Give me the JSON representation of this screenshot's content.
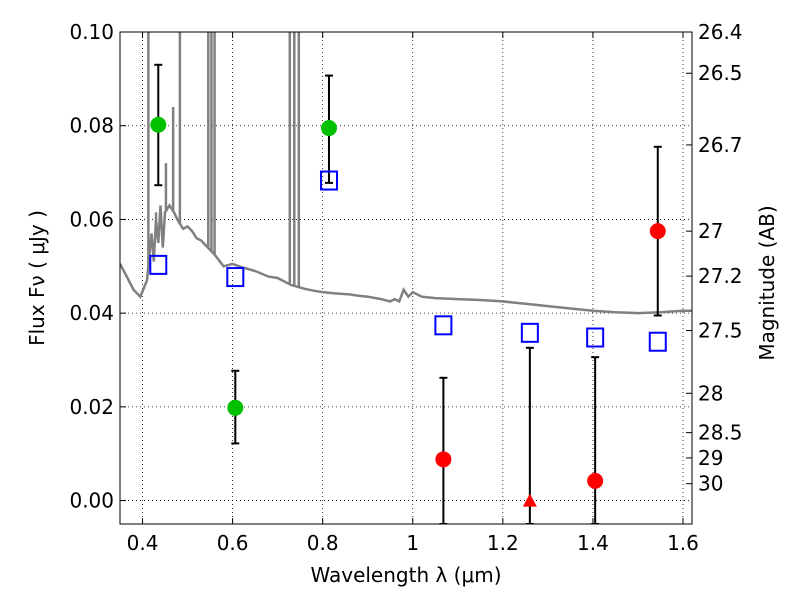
{
  "chart_data": {
    "type": "scatter",
    "xlabel": "Wavelength  λ (μm)",
    "ylabel": "Flux  Fν  ( μJy )",
    "ylabel_right": "Magnitude (AB)",
    "xlim": [
      0.35,
      1.62
    ],
    "ylim": [
      -0.005,
      0.1
    ],
    "x_ticks": [
      0.4,
      0.6,
      0.8,
      1.0,
      1.2,
      1.4,
      1.6
    ],
    "x_tick_labels": [
      "0.4",
      "0.6",
      "0.8",
      "1",
      "1.2",
      "1.4",
      "1.6"
    ],
    "y_ticks": [
      0.0,
      0.02,
      0.04,
      0.06,
      0.08,
      0.1
    ],
    "y_tick_labels": [
      "0.00",
      "0.02",
      "0.04",
      "0.06",
      "0.08",
      "0.10"
    ],
    "mag_ticks": [
      {
        "label": "26.4",
        "flux": 0.1
      },
      {
        "label": "26.5",
        "flux": 0.0912
      },
      {
        "label": "26.7",
        "flux": 0.0759
      },
      {
        "label": "27",
        "flux": 0.0575
      },
      {
        "label": "27.2",
        "flux": 0.0479
      },
      {
        "label": "27.5",
        "flux": 0.0363
      },
      {
        "label": "28",
        "flux": 0.0229
      },
      {
        "label": "28.5",
        "flux": 0.0145
      },
      {
        "label": "29",
        "flux": 0.0091
      },
      {
        "label": "30",
        "flux": 0.0036
      }
    ],
    "grid": true,
    "series": [
      {
        "name": "detections (green)",
        "color": "#00c000",
        "marker": "circle",
        "points": [
          {
            "x": 0.435,
            "y": 0.0802,
            "err_low": 0.0673,
            "err_high": 0.093
          },
          {
            "x": 0.606,
            "y": 0.0198,
            "err_low": 0.0122,
            "err_high": 0.0277
          },
          {
            "x": 0.814,
            "y": 0.0795,
            "err_low": 0.0678,
            "err_high": 0.0907
          }
        ]
      },
      {
        "name": "measurements (red)",
        "color": "#ff0000",
        "marker": "circle",
        "points": [
          {
            "x": 1.068,
            "y": 0.0088,
            "err_low": -0.005,
            "err_high": 0.0262
          },
          {
            "x": 1.405,
            "y": 0.0042,
            "err_low": -0.005,
            "err_high": 0.0306
          },
          {
            "x": 1.544,
            "y": 0.0575,
            "err_low": 0.0395,
            "err_high": 0.0755
          }
        ]
      },
      {
        "name": "upper limit (red triangle)",
        "color": "#ff0000",
        "marker": "triangle",
        "points": [
          {
            "x": 1.26,
            "y": 0.0,
            "err_low": -0.005,
            "err_high": 0.0326
          }
        ]
      },
      {
        "name": "model photometry",
        "color": "#0000ff",
        "marker": "open-square",
        "points": [
          {
            "x": 0.435,
            "y": 0.0503
          },
          {
            "x": 0.606,
            "y": 0.0477
          },
          {
            "x": 0.814,
            "y": 0.0683
          },
          {
            "x": 1.068,
            "y": 0.0374
          },
          {
            "x": 1.26,
            "y": 0.0358
          },
          {
            "x": 1.405,
            "y": 0.0348
          },
          {
            "x": 1.544,
            "y": 0.0339
          }
        ]
      },
      {
        "name": "SED template",
        "color": "#808080",
        "line": [
          [
            0.35,
            0.0505
          ],
          [
            0.365,
            0.0478
          ],
          [
            0.38,
            0.045
          ],
          [
            0.395,
            0.0435
          ],
          [
            0.41,
            0.047
          ],
          [
            0.42,
            0.057
          ],
          [
            0.425,
            0.051
          ],
          [
            0.43,
            0.06
          ],
          [
            0.435,
            0.055
          ],
          [
            0.44,
            0.063
          ],
          [
            0.445,
            0.054
          ],
          [
            0.45,
            0.0615
          ],
          [
            0.46,
            0.063
          ],
          [
            0.47,
            0.0615
          ],
          [
            0.48,
            0.0595
          ],
          [
            0.49,
            0.058
          ],
          [
            0.5,
            0.0585
          ],
          [
            0.51,
            0.0575
          ],
          [
            0.52,
            0.056
          ],
          [
            0.53,
            0.0555
          ],
          [
            0.54,
            0.0545
          ],
          [
            0.55,
            0.0535
          ],
          [
            0.56,
            0.0525
          ],
          [
            0.58,
            0.05
          ],
          [
            0.6,
            0.0505
          ],
          [
            0.62,
            0.0498
          ],
          [
            0.65,
            0.049
          ],
          [
            0.68,
            0.0478
          ],
          [
            0.7,
            0.0475
          ],
          [
            0.73,
            0.046
          ],
          [
            0.76,
            0.0452
          ],
          [
            0.78,
            0.0448
          ],
          [
            0.8,
            0.0445
          ],
          [
            0.83,
            0.0442
          ],
          [
            0.86,
            0.044
          ],
          [
            0.88,
            0.0437
          ],
          [
            0.9,
            0.0435
          ],
          [
            0.93,
            0.043
          ],
          [
            0.95,
            0.0425
          ],
          [
            0.96,
            0.043
          ],
          [
            0.97,
            0.0425
          ],
          [
            0.98,
            0.045
          ],
          [
            0.99,
            0.0435
          ],
          [
            1.0,
            0.0445
          ],
          [
            1.02,
            0.0435
          ],
          [
            1.05,
            0.0432
          ],
          [
            1.1,
            0.043
          ],
          [
            1.15,
            0.0428
          ],
          [
            1.2,
            0.0425
          ],
          [
            1.25,
            0.042
          ],
          [
            1.3,
            0.0415
          ],
          [
            1.35,
            0.041
          ],
          [
            1.4,
            0.0405
          ],
          [
            1.45,
            0.0402
          ],
          [
            1.5,
            0.04
          ],
          [
            1.55,
            0.0402
          ],
          [
            1.6,
            0.0405
          ],
          [
            1.62,
            0.0405
          ]
        ],
        "spikes": [
          {
            "x": 0.43,
            "top": 0.0615
          },
          {
            "x": 0.452,
            "top": 0.072
          },
          {
            "x": 0.468,
            "top": 0.084
          },
          {
            "x": 0.483,
            "top": 0.1
          },
          {
            "x": 0.546,
            "top": 0.1
          },
          {
            "x": 0.553,
            "top": 0.1
          },
          {
            "x": 0.56,
            "top": 0.1
          },
          {
            "x": 0.727,
            "top": 0.1
          },
          {
            "x": 0.737,
            "top": 0.1
          },
          {
            "x": 0.747,
            "top": 0.1
          },
          {
            "x": 0.413,
            "top": 0.1
          }
        ]
      }
    ]
  }
}
